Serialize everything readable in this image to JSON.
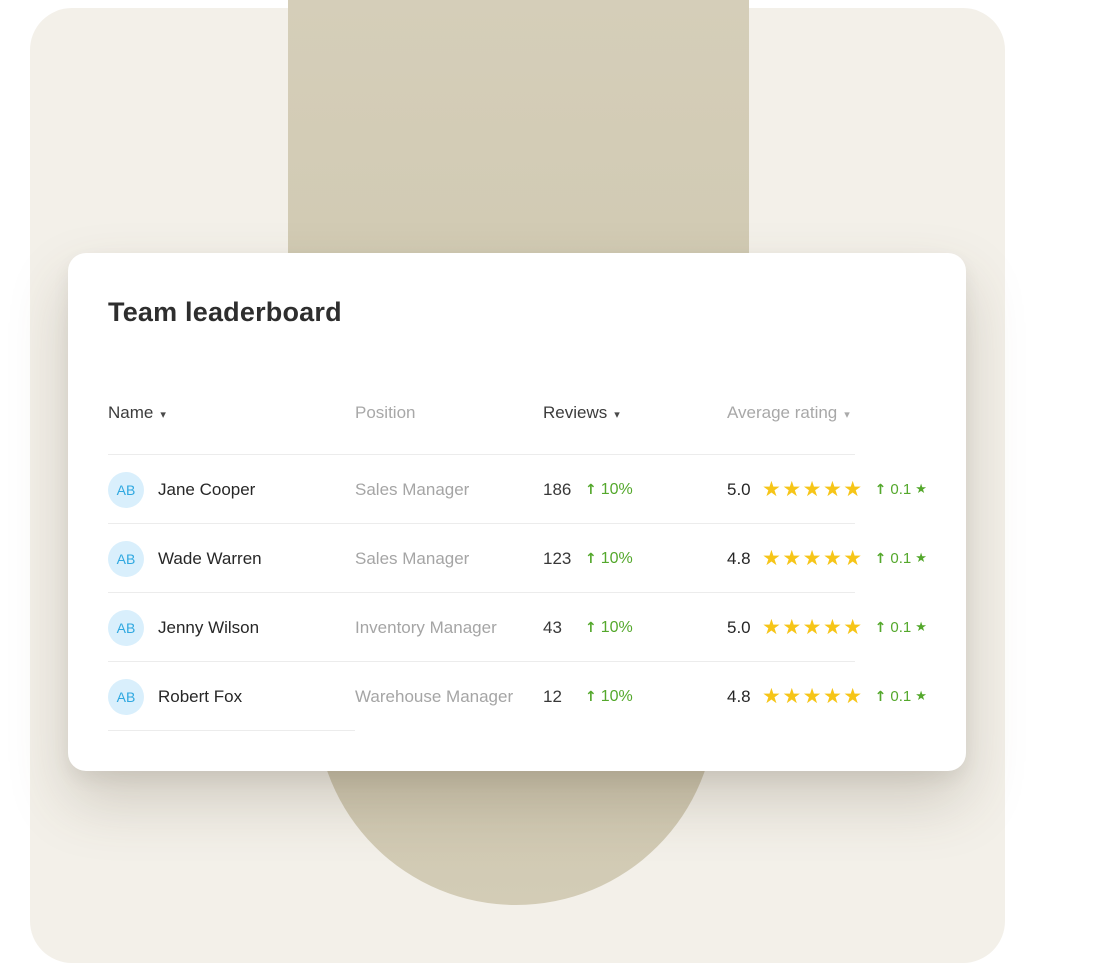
{
  "background": {
    "page_color": "#ffffff",
    "panel_color": "#f3f0e9",
    "decor_color": "#d1cab3"
  },
  "card": {
    "title": "Team leaderboard",
    "columns": [
      {
        "label": "Name",
        "sortable": true
      },
      {
        "label": "Position",
        "sortable": false
      },
      {
        "label": "Reviews",
        "sortable": true
      },
      {
        "label": "Average rating",
        "sortable": true
      }
    ],
    "rows": [
      {
        "initials": "AB",
        "name": "Jane Cooper",
        "position": "Sales Manager",
        "reviews": "186",
        "reviews_change": "10%",
        "rating": "5.0",
        "stars": "★★★★★",
        "rating_change": "0.1"
      },
      {
        "initials": "AB",
        "name": "Wade Warren",
        "position": "Sales Manager",
        "reviews": "123",
        "reviews_change": "10%",
        "rating": "4.8",
        "stars": "★★★★★",
        "rating_change": "0.1"
      },
      {
        "initials": "AB",
        "name": "Jenny Wilson",
        "position": "Inventory Manager",
        "reviews": "43",
        "reviews_change": "10%",
        "rating": "5.0",
        "stars": "★★★★★",
        "rating_change": "0.1"
      },
      {
        "initials": "AB",
        "name": "Robert Fox",
        "position": "Warehouse Manager",
        "reviews": "12",
        "reviews_change": "10%",
        "rating": "4.8",
        "stars": "★★★★★",
        "rating_change": "0.1"
      }
    ]
  },
  "icons": {
    "sort_arrow": "▾",
    "up_arrow": "↑",
    "star": "★"
  },
  "colors": {
    "accent_green": "#54a82c",
    "star_yellow": "#f6c518",
    "avatar_text_blue": "#2fa8e0",
    "avatar_bg_blue": "#d9effc"
  }
}
